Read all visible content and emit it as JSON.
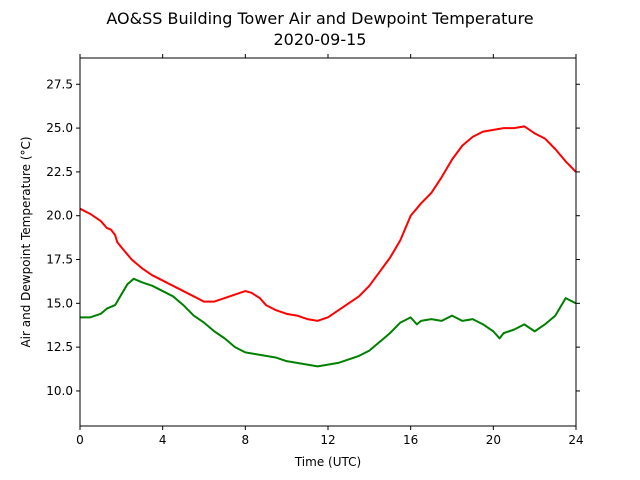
{
  "chart_data": {
    "type": "line",
    "title": "AO&SS Building Tower Air and Dewpoint Temperature",
    "subtitle": "2020-09-15",
    "xlabel": "Time (UTC)",
    "ylabel": "Air and Dewpoint Temperature (°C)",
    "xlim": [
      0,
      24
    ],
    "ylim": [
      8,
      29
    ],
    "xticks": [
      0,
      4,
      8,
      12,
      16,
      20,
      24
    ],
    "yticks": [
      10.0,
      12.5,
      15.0,
      17.5,
      20.0,
      22.5,
      25.0,
      27.5
    ],
    "ytick_labels": [
      "10.0",
      "12.5",
      "15.0",
      "17.5",
      "20.0",
      "22.5",
      "25.0",
      "27.5"
    ],
    "grid": false,
    "legend": "none",
    "series": [
      {
        "color": "#ff0000",
        "x": [
          0,
          0.5,
          1,
          1.3,
          1.5,
          1.7,
          1.8,
          2,
          2.5,
          3,
          3.5,
          4,
          4.5,
          5,
          5.5,
          6,
          6.5,
          7,
          7.5,
          8,
          8.3,
          8.7,
          9,
          9.5,
          10,
          10.5,
          11,
          11.5,
          12,
          12.5,
          13,
          13.5,
          14,
          14.5,
          15,
          15.5,
          16,
          16.5,
          17,
          17.5,
          18,
          18.5,
          19,
          19.5,
          20,
          20.5,
          21,
          21.5,
          22,
          22.5,
          23,
          23.5,
          24
        ],
        "y": [
          20.4,
          20.1,
          19.7,
          19.3,
          19.2,
          18.9,
          18.5,
          18.2,
          17.5,
          17.0,
          16.6,
          16.3,
          16.0,
          15.7,
          15.4,
          15.1,
          15.1,
          15.3,
          15.5,
          15.7,
          15.6,
          15.3,
          14.9,
          14.6,
          14.4,
          14.3,
          14.1,
          14.0,
          14.2,
          14.6,
          15.0,
          15.4,
          16.0,
          16.8,
          17.6,
          18.6,
          20.0,
          20.7,
          21.3,
          22.2,
          23.2,
          24.0,
          24.5,
          24.8,
          24.9,
          25.0,
          25.0,
          25.1,
          24.7,
          24.4,
          23.8,
          23.1,
          22.5
        ]
      },
      {
        "color": "#008000",
        "x": [
          0,
          0.5,
          1,
          1.3,
          1.5,
          1.7,
          2,
          2.3,
          2.6,
          3,
          3.5,
          4,
          4.5,
          5,
          5.5,
          6,
          6.5,
          7,
          7.5,
          8,
          8.5,
          9,
          9.5,
          10,
          10.5,
          11,
          11.5,
          12,
          12.5,
          13,
          13.5,
          14,
          14.5,
          15,
          15.5,
          16,
          16.3,
          16.5,
          17,
          17.5,
          18,
          18.5,
          19,
          19.5,
          20,
          20.3,
          20.5,
          21,
          21.5,
          22,
          22.5,
          23,
          23.5,
          24
        ],
        "y": [
          14.2,
          14.2,
          14.4,
          14.7,
          14.8,
          14.9,
          15.5,
          16.1,
          16.4,
          16.2,
          16.0,
          15.7,
          15.4,
          14.9,
          14.3,
          13.9,
          13.4,
          13.0,
          12.5,
          12.2,
          12.1,
          12.0,
          11.9,
          11.7,
          11.6,
          11.5,
          11.4,
          11.5,
          11.6,
          11.8,
          12.0,
          12.3,
          12.8,
          13.3,
          13.9,
          14.2,
          13.8,
          14.0,
          14.1,
          14.0,
          14.3,
          14.0,
          14.1,
          13.8,
          13.4,
          13.0,
          13.3,
          13.5,
          13.8,
          13.4,
          13.8,
          14.3,
          15.3,
          15.0
        ]
      }
    ]
  }
}
